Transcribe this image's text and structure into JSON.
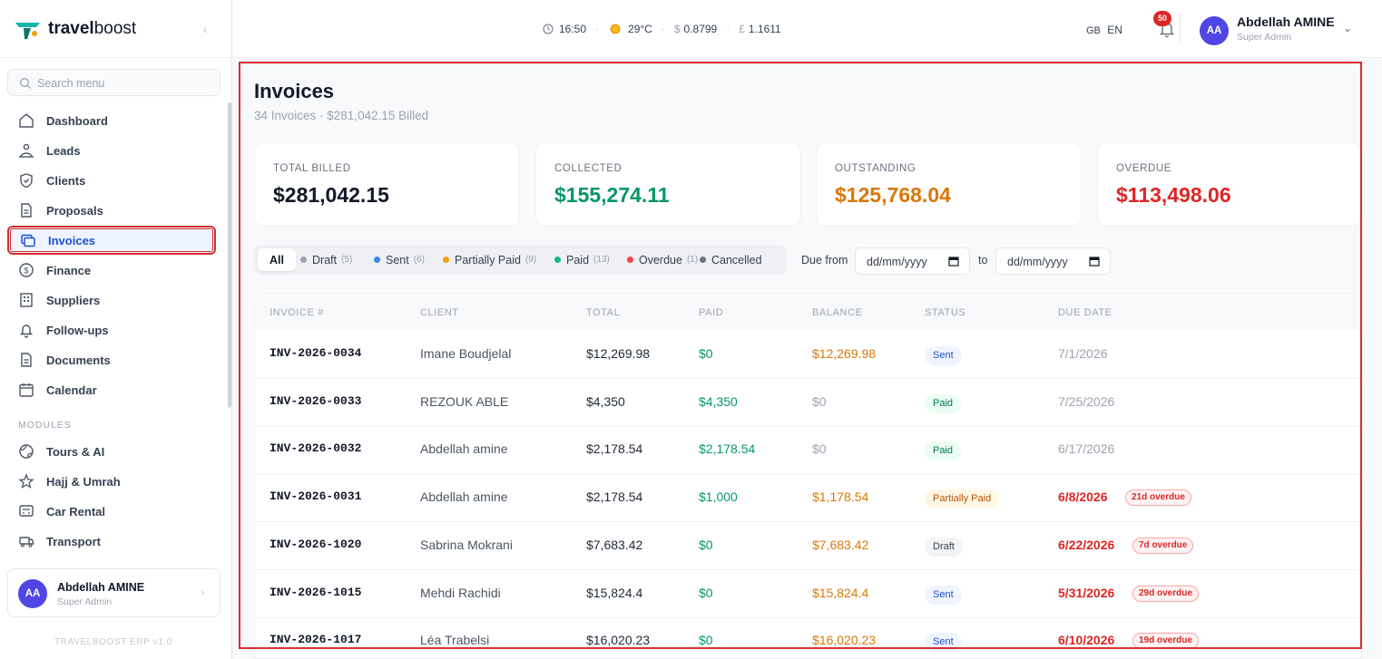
{
  "brand": {
    "name_bold": "travel",
    "name_rest": "boost",
    "version": "TRAVELBOOST ERP v1.0"
  },
  "sidebar": {
    "search_placeholder": "Search menu",
    "items": [
      {
        "label": "Dashboard",
        "icon": "home-icon"
      },
      {
        "label": "Leads",
        "icon": "leads-icon"
      },
      {
        "label": "Clients",
        "icon": "shield-icon"
      },
      {
        "label": "Proposals",
        "icon": "document-icon"
      },
      {
        "label": "Invoices",
        "icon": "invoice-icon",
        "active": true
      },
      {
        "label": "Finance",
        "icon": "dollar-circle-icon"
      },
      {
        "label": "Suppliers",
        "icon": "building-icon"
      },
      {
        "label": "Follow-ups",
        "icon": "bell-icon"
      },
      {
        "label": "Documents",
        "icon": "document-icon"
      },
      {
        "label": "Calendar",
        "icon": "calendar-icon"
      }
    ],
    "modules_label": "MODULES",
    "modules": [
      {
        "label": "Tours & AI",
        "icon": "globe-icon"
      },
      {
        "label": "Hajj & Umrah",
        "icon": "star-icon"
      },
      {
        "label": "Car Rental",
        "icon": "car-icon"
      },
      {
        "label": "Transport",
        "icon": "bus-icon"
      }
    ],
    "user": {
      "initials": "AA",
      "name": "Abdellah AMINE",
      "role": "Super Admin"
    }
  },
  "topbar": {
    "time": "16:50",
    "temperature": "29°C",
    "usd_symbol": "$",
    "usd_rate": "0.8799",
    "gbp_symbol": "£",
    "gbp_rate": "1.1611",
    "language_flag": "GB",
    "language": "EN",
    "notifications_count": "50",
    "user": {
      "initials": "AA",
      "name": "Abdellah AMINE",
      "role": "Super Admin"
    }
  },
  "page": {
    "title": "Invoices",
    "subtitle": "34 Invoices · $281,042.15 Billed"
  },
  "stats": [
    {
      "label": "TOTAL BILLED",
      "value": "$281,042.15",
      "color": "#111827"
    },
    {
      "label": "COLLECTED",
      "value": "$155,274.11",
      "color": "#059669"
    },
    {
      "label": "OUTSTANDING",
      "value": "$125,768.04",
      "color": "#d97706"
    },
    {
      "label": "OVERDUE",
      "value": "$113,498.06",
      "color": "#dc2626"
    }
  ],
  "filters": {
    "all": "All",
    "chips": [
      {
        "label": "Draft",
        "count": "(5)",
        "color": "#9ca3af"
      },
      {
        "label": "Sent",
        "count": "(6)",
        "color": "#3b82f6"
      },
      {
        "label": "Partially Paid",
        "count": "(9)",
        "color": "#f59e0b"
      },
      {
        "label": "Paid",
        "count": "(13)",
        "color": "#10b981"
      },
      {
        "label": "Overdue",
        "count": "(1)",
        "color": "#ef4444"
      },
      {
        "label": "Cancelled",
        "count": "",
        "color": "#6b7280"
      }
    ],
    "due_from_label": "Due from",
    "to_label": "to",
    "date_placeholder": "dd/mm/yyyy"
  },
  "table": {
    "columns": [
      "INVOICE #",
      "CLIENT",
      "TOTAL",
      "PAID",
      "BALANCE",
      "STATUS",
      "DUE DATE"
    ],
    "rows": [
      {
        "invoice": "INV-2026-0034",
        "client": "Imane Boudjelal",
        "total": "$12,269.98",
        "paid": "$0",
        "balance": "$12,269.98",
        "status": "Sent",
        "due": "7/1/2026",
        "overdue": ""
      },
      {
        "invoice": "INV-2026-0033",
        "client": "REZOUK ABLE",
        "total": "$4,350",
        "paid": "$4,350",
        "balance": "$0",
        "status": "Paid",
        "due": "7/25/2026",
        "overdue": ""
      },
      {
        "invoice": "INV-2026-0032",
        "client": "Abdellah amine",
        "total": "$2,178.54",
        "paid": "$2,178.54",
        "balance": "$0",
        "status": "Paid",
        "due": "6/17/2026",
        "overdue": ""
      },
      {
        "invoice": "INV-2026-0031",
        "client": "Abdellah amine",
        "total": "$2,178.54",
        "paid": "$1,000",
        "balance": "$1,178.54",
        "status": "Partially Paid",
        "due": "6/8/2026",
        "overdue": "21d overdue"
      },
      {
        "invoice": "INV-2026-1020",
        "client": "Sabrina Mokrani",
        "total": "$7,683.42",
        "paid": "$0",
        "balance": "$7,683.42",
        "status": "Draft",
        "due": "6/22/2026",
        "overdue": "7d overdue"
      },
      {
        "invoice": "INV-2026-1015",
        "client": "Mehdi Rachidi",
        "total": "$15,824.4",
        "paid": "$0",
        "balance": "$15,824.4",
        "status": "Sent",
        "due": "5/31/2026",
        "overdue": "29d overdue"
      },
      {
        "invoice": "INV-2026-1017",
        "client": "Léa Trabelsi",
        "total": "$16,020.23",
        "paid": "$0",
        "balance": "$16,020.23",
        "status": "Sent",
        "due": "6/10/2026",
        "overdue": "19d overdue"
      }
    ]
  }
}
